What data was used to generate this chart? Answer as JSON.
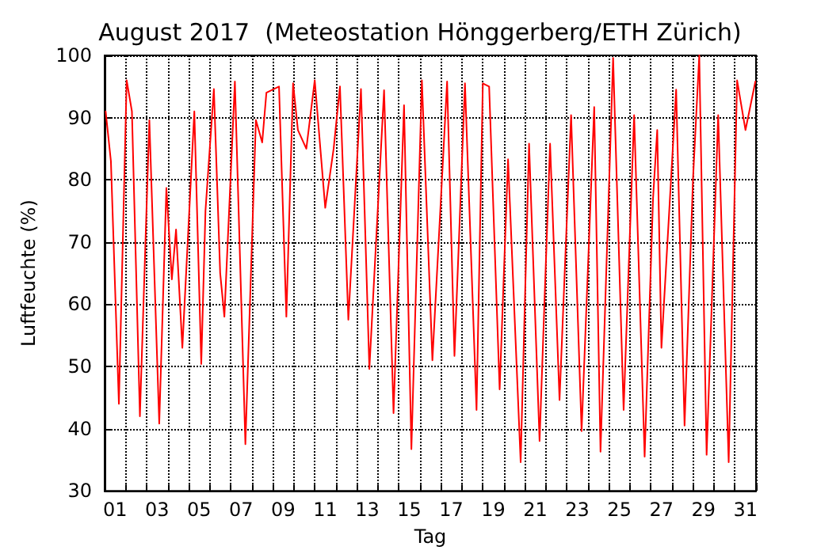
{
  "chart_data": {
    "type": "line",
    "title": "August 2017  (Meteostation Hönggerberg/ETH Zürich)",
    "xlabel": "Tag",
    "ylabel": "Luftfeuchte (%)",
    "x": [
      1.05,
      1.3,
      1.68,
      2.05,
      2.3,
      2.68,
      3.13,
      3.6,
      3.94,
      4.2,
      4.4,
      4.7,
      5.27,
      5.6,
      5.8,
      6.2,
      6.5,
      6.7,
      7.2,
      7.7,
      8.2,
      8.5,
      8.7,
      9.3,
      9.65,
      9.97,
      10.2,
      10.6,
      11.0,
      11.5,
      11.9,
      12.2,
      12.6,
      13.2,
      13.6,
      14.3,
      14.75,
      15.25,
      15.6,
      16.1,
      16.6,
      17.3,
      17.65,
      18.15,
      18.7,
      19.0,
      19.3,
      19.8,
      20.2,
      20.8,
      21.2,
      21.7,
      22.2,
      22.65,
      23.2,
      23.7,
      24.3,
      24.6,
      25.2,
      25.7,
      26.2,
      26.7,
      27.1,
      27.3,
      27.5,
      28.2,
      28.6,
      29.0,
      29.3,
      29.65,
      30.2,
      30.7,
      31.1,
      31.5,
      31.97
    ],
    "series": [
      {
        "color": "#ff0000",
        "values": [
          91,
          83,
          44,
          96,
          91,
          42,
          89.6,
          40.8,
          78.7,
          64,
          72,
          53,
          91,
          50.4,
          75,
          94.6,
          65,
          58,
          95.8,
          37.5,
          89.6,
          86,
          94,
          95,
          58,
          95.5,
          88,
          85,
          96,
          75.5,
          85,
          95,
          57.5,
          94.6,
          49.6,
          94.4,
          42.5,
          92,
          36.7,
          96,
          51,
          95.8,
          51.7,
          95.5,
          43,
          95.5,
          95,
          46.3,
          83.3,
          34.6,
          85.8,
          38,
          85.8,
          44.6,
          90.4,
          39.6,
          91.7,
          36.3,
          99.6,
          43,
          90.4,
          35.5,
          77,
          88,
          53,
          94.5,
          40.5,
          80,
          100,
          35.8,
          90.4,
          34.6,
          96,
          88,
          95.8
        ]
      }
    ],
    "xlim": [
      1,
      32
    ],
    "xticks": [
      {
        "value": 1,
        "label": null
      },
      {
        "value": 1.5,
        "label": "01"
      },
      {
        "value": 2,
        "label": null
      },
      {
        "value": 3,
        "label": null
      },
      {
        "value": 3.5,
        "label": "03"
      },
      {
        "value": 4,
        "label": null
      },
      {
        "value": 5,
        "label": null
      },
      {
        "value": 5.5,
        "label": "05"
      },
      {
        "value": 6,
        "label": null
      },
      {
        "value": 7,
        "label": null
      },
      {
        "value": 7.5,
        "label": "07"
      },
      {
        "value": 8,
        "label": null
      },
      {
        "value": 9,
        "label": null
      },
      {
        "value": 9.5,
        "label": "09"
      },
      {
        "value": 10,
        "label": null
      },
      {
        "value": 11,
        "label": null
      },
      {
        "value": 11.5,
        "label": "11"
      },
      {
        "value": 12,
        "label": null
      },
      {
        "value": 13,
        "label": null
      },
      {
        "value": 13.5,
        "label": "13"
      },
      {
        "value": 14,
        "label": null
      },
      {
        "value": 15,
        "label": null
      },
      {
        "value": 15.5,
        "label": "15"
      },
      {
        "value": 16,
        "label": null
      },
      {
        "value": 17,
        "label": null
      },
      {
        "value": 17.5,
        "label": "17"
      },
      {
        "value": 18,
        "label": null
      },
      {
        "value": 19,
        "label": null
      },
      {
        "value": 19.5,
        "label": "19"
      },
      {
        "value": 20,
        "label": null
      },
      {
        "value": 21,
        "label": null
      },
      {
        "value": 21.5,
        "label": "21"
      },
      {
        "value": 22,
        "label": null
      },
      {
        "value": 23,
        "label": null
      },
      {
        "value": 23.5,
        "label": "23"
      },
      {
        "value": 24,
        "label": null
      },
      {
        "value": 25,
        "label": null
      },
      {
        "value": 25.5,
        "label": "25"
      },
      {
        "value": 26,
        "label": null
      },
      {
        "value": 27,
        "label": null
      },
      {
        "value": 27.5,
        "label": "27"
      },
      {
        "value": 28,
        "label": null
      },
      {
        "value": 29,
        "label": null
      },
      {
        "value": 29.5,
        "label": "29"
      },
      {
        "value": 30,
        "label": null
      },
      {
        "value": 31,
        "label": null
      },
      {
        "value": 31.5,
        "label": "31"
      },
      {
        "value": 32,
        "label": null
      }
    ],
    "ylim": [
      30,
      100
    ],
    "yticks": [
      30,
      40,
      50,
      60,
      70,
      80,
      90,
      100
    ],
    "grid": true,
    "marker": "none",
    "line_style": "solid"
  }
}
